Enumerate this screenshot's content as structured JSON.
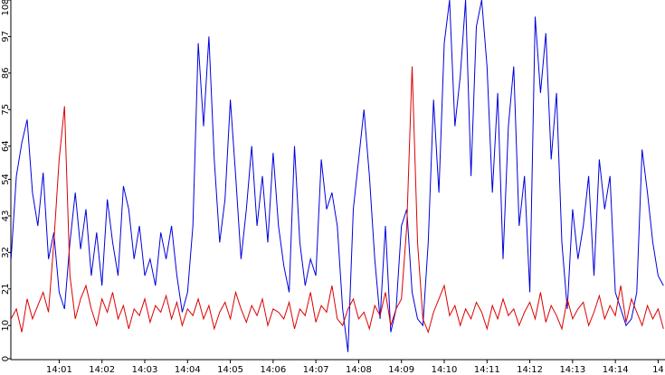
{
  "chart_data": {
    "type": "line",
    "x": [
      -0.125,
      0,
      0.125,
      0.25,
      0.375,
      0.5,
      0.625,
      0.75,
      0.875,
      1,
      1.125,
      1.25,
      1.375,
      1.5,
      1.625,
      1.75,
      1.875,
      2,
      2.125,
      2.25,
      2.375,
      2.5,
      2.625,
      2.75,
      2.875,
      3,
      3.125,
      3.25,
      3.375,
      3.5,
      3.625,
      3.75,
      3.875,
      4,
      4.125,
      4.25,
      4.375,
      4.5,
      4.625,
      4.75,
      4.875,
      5,
      5.125,
      5.25,
      5.375,
      5.5,
      5.625,
      5.75,
      5.875,
      6,
      6.125,
      6.25,
      6.375,
      6.5,
      6.625,
      6.75,
      6.875,
      7,
      7.125,
      7.25,
      7.375,
      7.5,
      7.625,
      7.75,
      7.875,
      8,
      8.125,
      8.25,
      8.375,
      8.5,
      8.625,
      8.75,
      8.875,
      9,
      9.125,
      9.25,
      9.375,
      9.5,
      9.625,
      9.75,
      9.875,
      10,
      10.125,
      10.25,
      10.375,
      10.5,
      10.625,
      10.75,
      10.875,
      11,
      11.125,
      11.25,
      11.375,
      11.5,
      11.625,
      11.75,
      11.875,
      12,
      12.125,
      12.25,
      12.375,
      12.5,
      12.625,
      12.75,
      12.875,
      13,
      13.125,
      13.25,
      13.375,
      13.5,
      13.625,
      13.75,
      13.875,
      14,
      14.125,
      14.25,
      14.375,
      14.5,
      14.625,
      14.75,
      14.875,
      15,
      15.125
    ],
    "series": [
      {
        "color": "#0000dd",
        "values": [
          30,
          55,
          65,
          72,
          50,
          40,
          56,
          30,
          38,
          20,
          15,
          35,
          50,
          33,
          45,
          25,
          38,
          22,
          48,
          35,
          25,
          52,
          45,
          30,
          40,
          25,
          30,
          22,
          38,
          30,
          40,
          25,
          14,
          20,
          40,
          95,
          70,
          97,
          60,
          35,
          48,
          78,
          55,
          30,
          45,
          64,
          40,
          55,
          35,
          62,
          40,
          28,
          20,
          64,
          35,
          22,
          30,
          25,
          60,
          45,
          50,
          40,
          15,
          2,
          45,
          60,
          75,
          55,
          30,
          12,
          40,
          8,
          15,
          40,
          45,
          20,
          12,
          10,
          35,
          78,
          50,
          95,
          108,
          70,
          85,
          108,
          55,
          100,
          108,
          88,
          50,
          80,
          30,
          70,
          88,
          40,
          55,
          20,
          103,
          80,
          98,
          60,
          80,
          35,
          15,
          45,
          30,
          40,
          55,
          25,
          60,
          45,
          55,
          20,
          15,
          10,
          12,
          20,
          63,
          50,
          35,
          25,
          22
        ]
      },
      {
        "color": "#dd0000",
        "values": [
          12,
          15,
          8,
          18,
          12,
          16,
          20,
          14,
          35,
          60,
          76,
          25,
          12,
          18,
          22,
          15,
          10,
          18,
          14,
          20,
          12,
          16,
          9,
          15,
          13,
          18,
          11,
          16,
          14,
          19,
          12,
          17,
          10,
          15,
          13,
          18,
          12,
          16,
          9,
          14,
          17,
          12,
          20,
          15,
          11,
          16,
          13,
          18,
          10,
          15,
          14,
          12,
          17,
          9,
          15,
          13,
          20,
          11,
          16,
          14,
          22,
          12,
          10,
          15,
          18,
          12,
          14,
          9,
          16,
          13,
          20,
          10,
          15,
          18,
          40,
          88,
          35,
          12,
          8,
          14,
          18,
          22,
          13,
          16,
          10,
          15,
          12,
          17,
          14,
          9,
          16,
          12,
          18,
          13,
          15,
          10,
          14,
          17,
          12,
          20,
          11,
          16,
          13,
          9,
          18,
          12,
          15,
          17,
          10,
          14,
          19,
          12,
          16,
          13,
          22,
          11,
          18,
          14,
          10,
          16,
          12,
          15,
          9
        ]
      }
    ],
    "xlim": [
      -0.13,
      15.16
    ],
    "xticks": [
      {
        "value": 1,
        "label": "14:01"
      },
      {
        "value": 2,
        "label": "14:02"
      },
      {
        "value": 3,
        "label": "14:03"
      },
      {
        "value": 4,
        "label": "14:04"
      },
      {
        "value": 5,
        "label": "14:05"
      },
      {
        "value": 6,
        "label": "14:06"
      },
      {
        "value": 7,
        "label": "14:07"
      },
      {
        "value": 8,
        "label": "14:08"
      },
      {
        "value": 9,
        "label": "14:09"
      },
      {
        "value": 10,
        "label": "14:10"
      },
      {
        "value": 11,
        "label": "14:11"
      },
      {
        "value": 12,
        "label": "14:12"
      },
      {
        "value": 13,
        "label": "14:13"
      },
      {
        "value": 14,
        "label": "14:14"
      },
      {
        "value": 15,
        "label": "14"
      }
    ],
    "ylim": [
      0,
      108
    ],
    "yticks": [
      0,
      10,
      21,
      32,
      43,
      54,
      64,
      75,
      86,
      97,
      108
    ]
  }
}
